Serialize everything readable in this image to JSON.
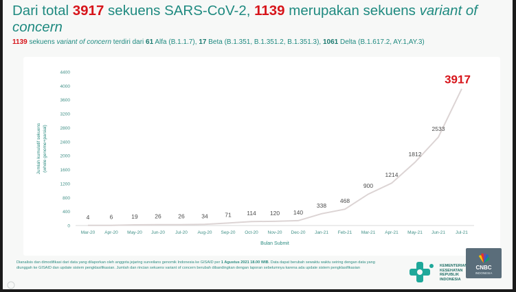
{
  "title": {
    "part1": "Dari total ",
    "total": "3917",
    "part2": " sekuens SARS-CoV-2, ",
    "voc": "1139",
    "part3": " merupakan sekuens ",
    "italic": "variant of concern"
  },
  "subtitle": {
    "count": "1139",
    "t1": " sekuens ",
    "italic": "variant of concern",
    "t2": " terdiri dari ",
    "alpha_count": "61",
    "alpha": " Alfa (B.1.1.7), ",
    "beta_count": "17",
    "beta": " Beta (B.1.351, B.1.351.2, B.1.351.3), ",
    "delta_count": "1061",
    "delta": " Delta (B.1.617.2, AY.1,AY.3)"
  },
  "footnote": {
    "line1a": "Dianalisis dan dimodifikasi dari data yang dilaporkan oleh anggota jejaring surveilans genomik Indonesia ke GISAID per ",
    "date": "1 Agustus 2021 18.00 WIB",
    "line1b": ". Data dapat berubah sewaktu waktu seiring dengan data yang",
    "line2": "diunggah ke GISAID dan update sistem pengklasifikasian. Jumlah dan rincian sekuens variant of concern berubah dibandingkan dengan laporan sebelumnya karena ada update sistem pengklasifikasian"
  },
  "logo": {
    "line1": "KEMENTERIAN",
    "line2": "KESEHATAN",
    "line3": "REPUBLIK",
    "line4": "INDONESIA",
    "brand_color": "#1fa89a"
  },
  "watermark": {
    "label": "CNBC",
    "sub": "INDONESIA"
  },
  "colors": {
    "title_teal": "#1f8a80",
    "accent_red": "#d7141a",
    "line": "#d9d2d2"
  },
  "chart_data": {
    "type": "line",
    "categories": [
      "Mar-20",
      "Apr-20",
      "May-20",
      "Jun-20",
      "Jul-20",
      "Aug-20",
      "Sep-20",
      "Oct-20",
      "Nov-20",
      "Dec-20",
      "Jan-21",
      "Feb-21",
      "Mar-21",
      "Apr-21",
      "May-21",
      "Jun-21",
      "Jul-21"
    ],
    "series": [
      {
        "values": [
          4,
          6,
          19,
          26,
          26,
          34,
          71,
          114,
          120,
          140,
          338,
          468,
          900,
          1214,
          1812,
          2533,
          3917
        ]
      }
    ],
    "data_labels": [
      "4",
      "6",
      "19",
      "26",
      "26",
      "34",
      "71",
      "114",
      "120",
      "140",
      "338",
      "468",
      "900",
      "1214",
      "1812",
      "2533",
      "3917"
    ],
    "highlight_label": "3917",
    "xlabel": "Bulan Submit",
    "ylabel": "Jumlah kumulatif sekuens (whole genome+parsial)",
    "ylabel_line1": "Jumlah kumulatif sekuens",
    "ylabel_line2": "(whole genome+parsial)",
    "ylim": [
      0,
      4400
    ],
    "yticks": [
      0,
      400,
      800,
      1200,
      1600,
      2000,
      2400,
      2800,
      3200,
      3600,
      4000,
      4400
    ],
    "grid": false,
    "legend": "none"
  }
}
